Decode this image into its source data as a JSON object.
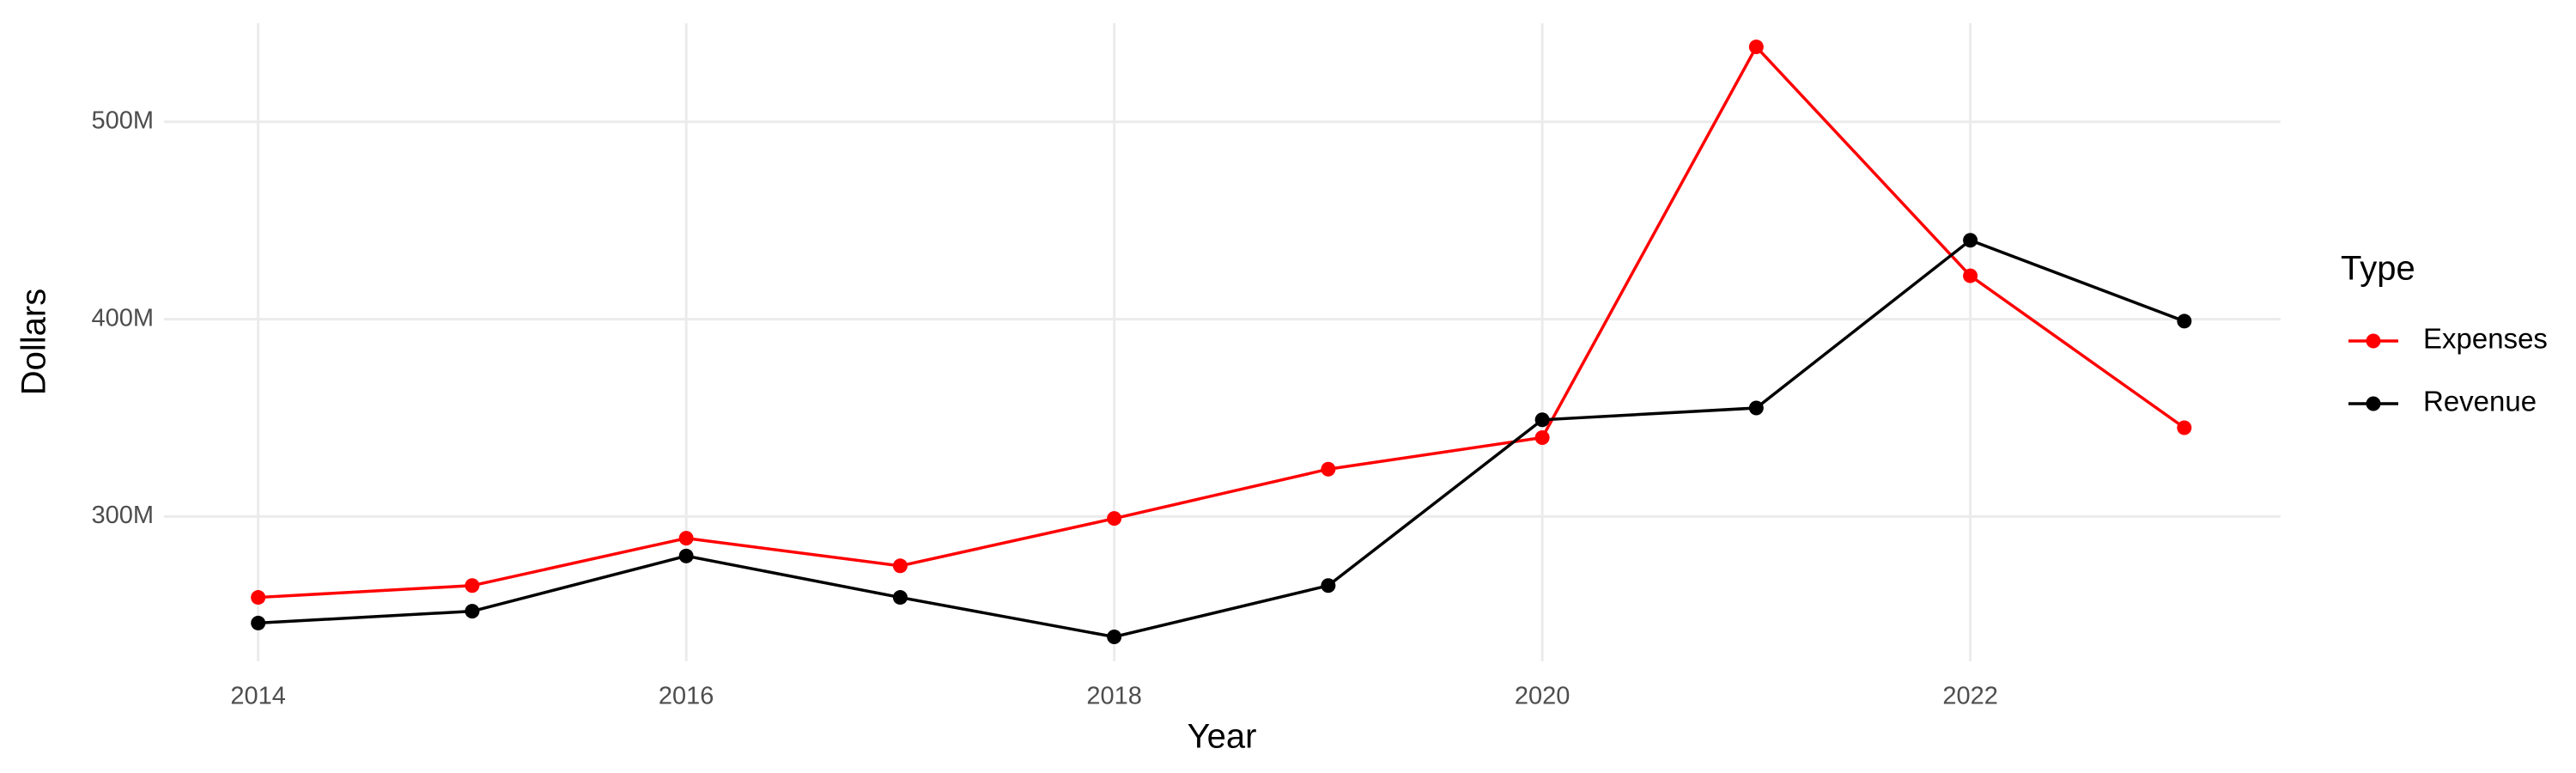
{
  "chart_data": {
    "type": "line",
    "x_label": "Year",
    "y_label": "Dollars",
    "legend_title": "Type",
    "x": [
      2014,
      2015,
      2016,
      2017,
      2018,
      2019,
      2020,
      2021,
      2022,
      2023
    ],
    "series": [
      {
        "name": "Expenses",
        "color": "#ff0000",
        "values": [
          259000000,
          265000000,
          289000000,
          275000000,
          299000000,
          324000000,
          340000000,
          538000000,
          422000000,
          345000000
        ]
      },
      {
        "name": "Revenue",
        "color": "#000000",
        "values": [
          246000000,
          252000000,
          280000000,
          259000000,
          239000000,
          265000000,
          349000000,
          355000000,
          440000000,
          399000000
        ]
      }
    ],
    "xlim": [
      2013.56,
      2023.45
    ],
    "xticks": [
      2014,
      2016,
      2018,
      2020,
      2022
    ],
    "ylim": [
      226600000,
      550000000
    ],
    "yticks": [
      {
        "value": 300000000,
        "label": "300M"
      },
      {
        "value": 400000000,
        "label": "400M"
      },
      {
        "value": 500000000,
        "label": "500M"
      }
    ],
    "grid": true,
    "legend_position": "right"
  }
}
